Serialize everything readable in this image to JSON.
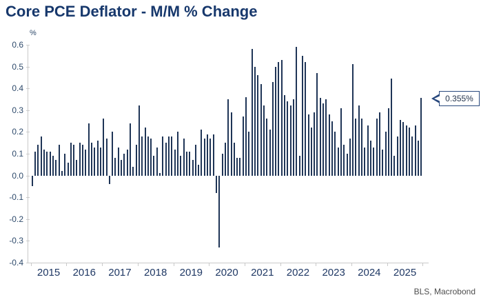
{
  "header": {
    "title": "Core PCE Deflator - M/M % Change"
  },
  "footer": {
    "source": "BLS, Macrobond"
  },
  "chart_data": {
    "type": "bar",
    "title": "Core PCE Deflator - M/M % Change",
    "xlabel": "",
    "ylabel": "%",
    "ylim": [
      -0.4,
      0.6
    ],
    "ytick_labels": [
      "0.6",
      "0.5",
      "0.4",
      "0.3",
      "0.2",
      "0.1",
      "0.0",
      "-0.1",
      "-0.2",
      "-0.3",
      "-0.4"
    ],
    "grid": false,
    "bar_color": "#1e3456",
    "axis_color": "#c9c9c9",
    "x_years": [
      "2015",
      "2016",
      "2017",
      "2018",
      "2019",
      "2020",
      "2021",
      "2022",
      "2023",
      "2024",
      "2025"
    ],
    "frequency": "monthly",
    "series": [
      {
        "name": "Core PCE Deflator M/M % Change",
        "values": [
          -0.05,
          0.11,
          0.14,
          0.18,
          0.12,
          0.11,
          0.11,
          0.09,
          0.07,
          0.14,
          0.02,
          0.1,
          0.06,
          0.15,
          0.14,
          0.07,
          0.15,
          0.14,
          0.12,
          0.24,
          0.15,
          0.13,
          0.16,
          0.13,
          0.26,
          0.17,
          -0.04,
          0.2,
          0.08,
          0.13,
          0.07,
          0.1,
          0.12,
          0.24,
          0.04,
          0.14,
          0.32,
          0.18,
          0.22,
          0.18,
          0.17,
          0.09,
          0.13,
          0.01,
          0.18,
          0.15,
          0.18,
          0.18,
          0.12,
          0.2,
          0.09,
          0.17,
          0.11,
          0.11,
          0.07,
          0.14,
          0.05,
          0.21,
          0.17,
          0.19,
          0.17,
          0.19,
          -0.08,
          -0.33,
          0.1,
          0.15,
          0.35,
          0.29,
          0.15,
          0.08,
          0.08,
          0.27,
          0.36,
          0.2,
          0.58,
          0.5,
          0.46,
          0.42,
          0.32,
          0.26,
          0.21,
          0.43,
          0.5,
          0.52,
          0.53,
          0.37,
          0.34,
          0.32,
          0.35,
          0.59,
          0.09,
          0.55,
          0.52,
          0.28,
          0.22,
          0.29,
          0.47,
          0.355,
          0.33,
          0.35,
          0.28,
          0.25,
          0.2,
          0.13,
          0.31,
          0.14,
          0.1,
          0.17,
          0.51,
          0.26,
          0.32,
          0.26,
          0.13,
          0.23,
          0.16,
          0.13,
          0.26,
          0.29,
          0.12,
          0.2,
          0.31,
          0.445,
          0.09,
          0.18,
          0.255,
          0.245,
          0.23,
          0.22,
          0.18,
          0.23,
          0.16,
          0.355
        ]
      }
    ],
    "annotation": {
      "label": "0.355%",
      "value": 0.355,
      "position": "last-point",
      "style": "white box, navy border, left-pointing arrow"
    },
    "legend": null
  }
}
